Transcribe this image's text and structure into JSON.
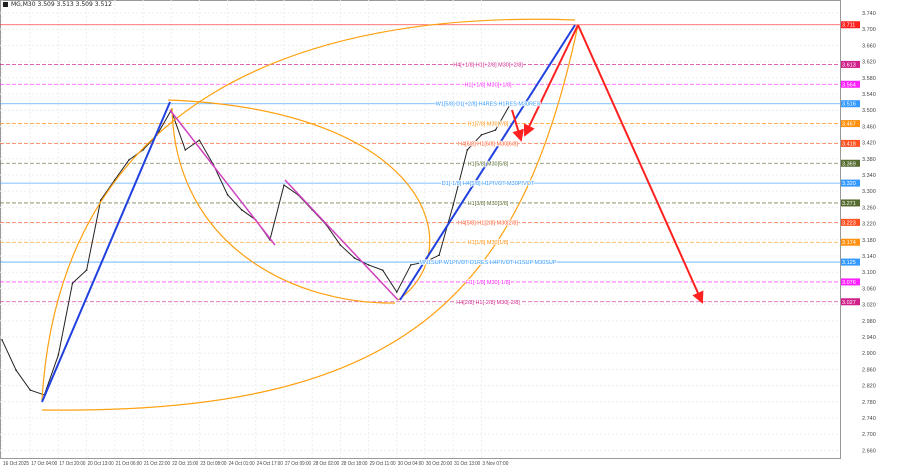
{
  "header": {
    "symbol": "MG,M30",
    "ohlc": "3.509 3.513 3.509 3.512"
  },
  "chart_data": {
    "type": "line",
    "title": "",
    "x": [
      "16 Oct 2025",
      "",
      "17 Oct 04:00",
      "",
      "17 Oct 20:00",
      "",
      "20 Oct 13:00",
      "",
      "21 Oct 06:00",
      "",
      "21 Oct 22:00",
      "",
      "22 Oct 15:00",
      "",
      "23 Oct 08:00",
      "",
      "24 Oct 01:00",
      "",
      "24 Oct 17:00",
      "",
      "27 Oct 09:00",
      "",
      "28 Oct 02:00",
      "",
      "28 Oct 18:00",
      "",
      "29 Oct 11:00",
      "",
      "30 Oct 04:00",
      "",
      "30 Oct 20:00",
      "",
      "31 Oct 13:00",
      "",
      "3 Nov 07:00",
      "",
      ""
    ],
    "series": [
      {
        "values": [
          2.933,
          2.858,
          2.809,
          2.797,
          2.896,
          3.073,
          3.105,
          3.278,
          3.328,
          3.377,
          3.402,
          3.439,
          3.5,
          3.402,
          3.426,
          3.365,
          3.291,
          3.254,
          3.229,
          3.18,
          3.315,
          3.291,
          3.254,
          3.217,
          3.167,
          3.135,
          3.118,
          3.105,
          3.051,
          3.118,
          3.125,
          3.142,
          3.266,
          3.402,
          3.439,
          3.451,
          3.512
        ]
      }
    ],
    "ylim": [
      2.64,
      3.76
    ],
    "y_ticks": [
      "3.740",
      "3.700",
      "3.660",
      "3.620",
      "3.580",
      "3.540",
      "3.500",
      "3.460",
      "3.420",
      "3.380",
      "3.340",
      "3.300",
      "3.260",
      "3.220",
      "3.180",
      "3.140",
      "3.100",
      "3.060",
      "3.020",
      "2.980",
      "2.940",
      "2.900",
      "2.860",
      "2.820",
      "2.780",
      "2.740",
      "2.700",
      "2.660"
    ],
    "x_tick_labels": [
      "16 Oct 2025",
      "17 Oct 04:00",
      "17 Oct 20:00",
      "20 Oct 13:00",
      "21 Oct 06:00",
      "21 Oct 22:00",
      "22 Oct 15:00",
      "23 Oct 08:00",
      "24 Oct 01:00",
      "24 Oct 17:00",
      "27 Oct 09:00",
      "28 Oct 02:00",
      "28 Oct 18:00",
      "29 Oct 11:00",
      "30 Oct 04:00",
      "30 Oct 20:00",
      "31 Oct 13:00",
      "3 Nov 07:00"
    ],
    "grid": true,
    "levels": [
      {
        "price": 3.711,
        "tag": "3.711",
        "text": "",
        "color": "#ff2020",
        "dash": false
      },
      {
        "price": 3.613,
        "tag": "3.613",
        "text": "H4[+1/8] H1[+2/8] M30[+2/8]",
        "color": "#d0208a",
        "dash": true
      },
      {
        "price": 3.564,
        "tag": "3.564",
        "text": "H1[+1/8] M30[+1/8]",
        "color": "#ff20ff",
        "dash": true
      },
      {
        "price": 3.516,
        "tag": "3.516",
        "text": "W1[5/8] D1[+2/8] H4RES H1RES M30RES",
        "color": "#3399ff",
        "dash": false
      },
      {
        "price": 3.467,
        "tag": "3.467",
        "text": "H1[7/8] M30[7/8]",
        "color": "#ff9010",
        "dash": true
      },
      {
        "price": 3.418,
        "tag": "3.418",
        "text": "H4[6/8] H1[6/8] M30[6/8]",
        "color": "#ff5020",
        "dash": true
      },
      {
        "price": 3.369,
        "tag": "3.369",
        "text": "H1[5/8] M30[5/8]",
        "color": "#556b2f",
        "dash": true
      },
      {
        "price": 3.32,
        "tag": "3.320",
        "text": "D1[-1/8] H4[5/8] H1PIVOT M30PIVOT",
        "color": "#3399ff",
        "dash": false
      },
      {
        "price": 3.271,
        "tag": "3.271",
        "text": "H1[3/8] M30[3/8]",
        "color": "#556b2f",
        "dash": true
      },
      {
        "price": 3.223,
        "tag": "3.223",
        "text": "H4[5/8] H1[2/8] M30[2/8]",
        "color": "#ff5020",
        "dash": true
      },
      {
        "price": 3.174,
        "tag": "3.174",
        "text": "H1[1/8] M30[1/8]",
        "color": "#ff9010",
        "dash": true
      },
      {
        "price": 3.125,
        "tag": "3.125",
        "text": "MN1SUP W1PIVOT D1RES H4PIVOT H1SUP M30SUP",
        "color": "#3399ff",
        "dash": false
      },
      {
        "price": 3.076,
        "tag": "3.076",
        "text": "H1[-1/8] M30[-1/8]",
        "color": "#ff20ff",
        "dash": true
      },
      {
        "price": 3.027,
        "tag": "3.027",
        "text": "H4[2/8] H1[-2/8] M30[-2/8]",
        "color": "#d0208a",
        "dash": true
      }
    ],
    "colors": {
      "trend_up": "#2040e0",
      "trend_down": "#d040c0",
      "arc": "#ffa010",
      "forecast": "#ff2020",
      "price": "#222222"
    }
  }
}
